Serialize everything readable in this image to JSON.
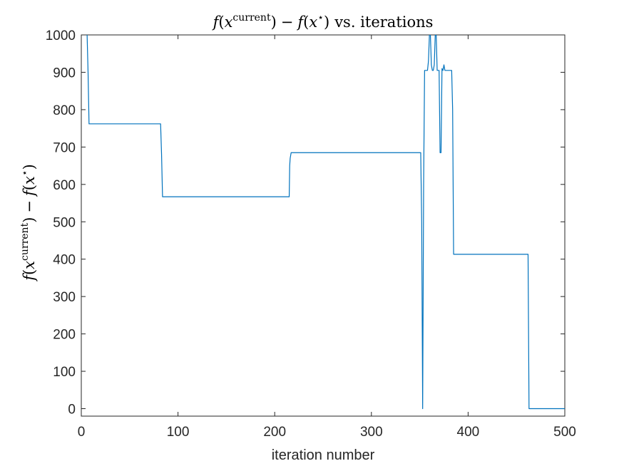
{
  "chart_data": {
    "type": "line",
    "title": {
      "f1": "f",
      "open1": "(",
      "x1": "x",
      "sup_current": "current",
      "close1": ")",
      "minus": "−",
      "f2": "f",
      "open2": "(",
      "x2": "x",
      "sup_star": "⋆",
      "close2": ")",
      "rest": "vs. iterations"
    },
    "xlabel": "iteration number",
    "ylabel": {
      "f1": "f",
      "open1": "(",
      "x1": "x",
      "sup_current": "current",
      "close1": ")",
      "minus": "−",
      "f2": "f",
      "open2": "(",
      "x2": "x",
      "sup_star": "⋆",
      "close2": ")"
    },
    "xlim": [
      0,
      500
    ],
    "ylim": [
      -20,
      1000
    ],
    "xticks": [
      0,
      100,
      200,
      300,
      400,
      500
    ],
    "yticks": [
      0,
      100,
      200,
      300,
      400,
      500,
      600,
      700,
      800,
      900,
      1000
    ],
    "xtick_labels": [
      "0",
      "100",
      "200",
      "300",
      "400",
      "500"
    ],
    "ytick_labels": [
      "0",
      "100",
      "200",
      "300",
      "400",
      "500",
      "600",
      "700",
      "800",
      "900",
      "1000"
    ],
    "grid": false,
    "line_color": "#0072BD",
    "series": [
      {
        "x": [
          6,
          7,
          8,
          82,
          83,
          84,
          215,
          215.5,
          216,
          217,
          351,
          352,
          353,
          354,
          355,
          356,
          358,
          359,
          360,
          361,
          362,
          363,
          364,
          365,
          366,
          367,
          368,
          369,
          370,
          371,
          372,
          373,
          374,
          375,
          376,
          377,
          378,
          379,
          380,
          381,
          383,
          384,
          385,
          386,
          462,
          463,
          500
        ],
        "y": [
          1000,
          900,
          762,
          762,
          680,
          567,
          567,
          650,
          670,
          685,
          685,
          500,
          0,
          600,
          905,
          905,
          905,
          930,
          1000,
          1000,
          920,
          905,
          905,
          920,
          1000,
          1000,
          905,
          905,
          905,
          685,
          685,
          910,
          905,
          920,
          905,
          905,
          905,
          905,
          905,
          905,
          905,
          800,
          413,
          413,
          413,
          0,
          0
        ]
      }
    ]
  }
}
